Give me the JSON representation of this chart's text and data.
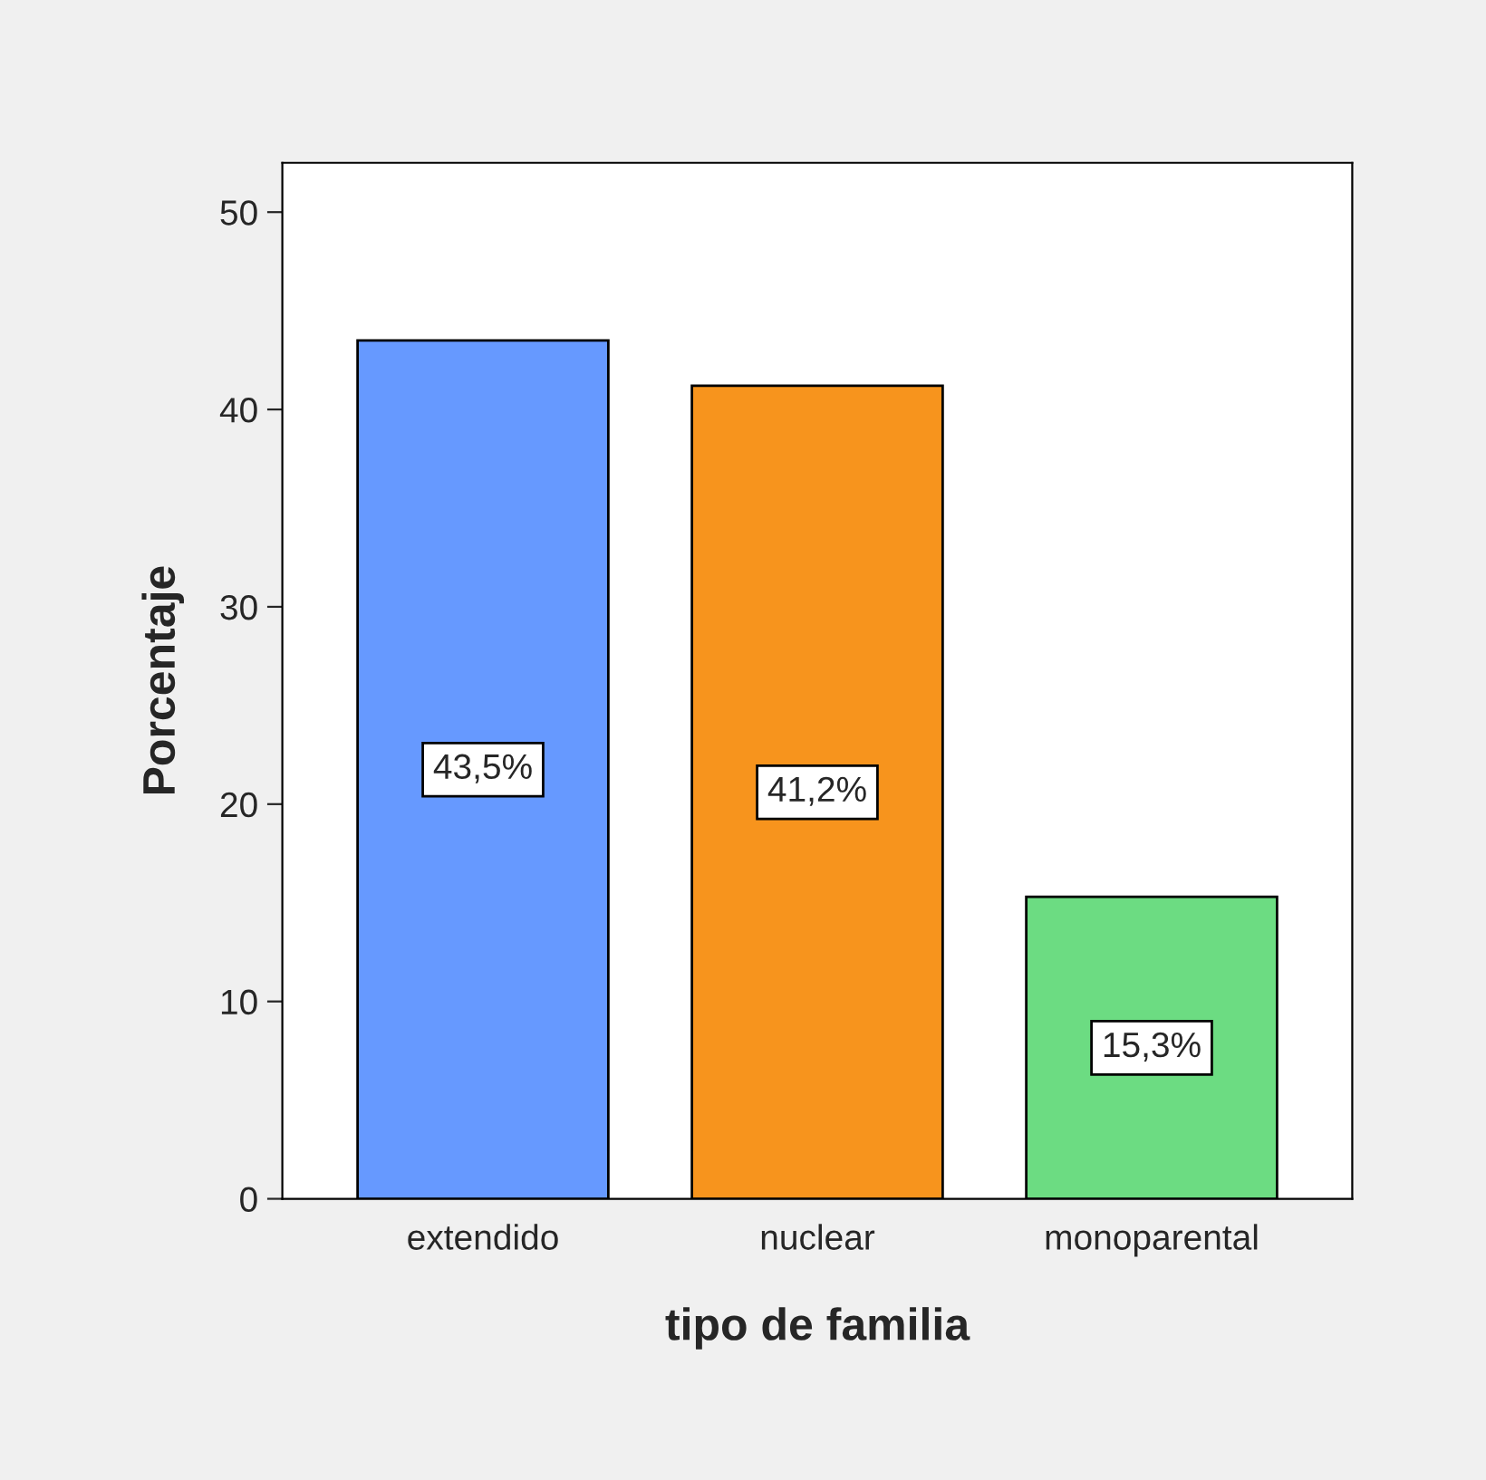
{
  "chart_data": {
    "type": "bar",
    "xlabel": "tipo de familia",
    "ylabel": "Porcentaje",
    "categories": [
      "extendido",
      "nuclear",
      "monoparental"
    ],
    "values": [
      43.5,
      41.2,
      15.3
    ],
    "colors": [
      "#6699ff",
      "#f7941d",
      "#6cdc82"
    ],
    "value_labels": [
      "43,5%",
      "41,2%",
      "15,3%"
    ],
    "ylim": [
      0,
      52.5
    ],
    "yticks": [
      0,
      10,
      20,
      30,
      40,
      50
    ],
    "grid": false
  }
}
